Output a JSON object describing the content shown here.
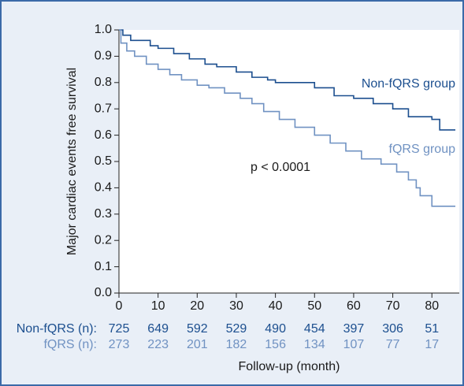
{
  "chart_data": {
    "type": "step",
    "ylabel": "Major cardiac events free survival",
    "xlabel": "Follow-up (month)",
    "annotation": "p < 0.0001",
    "xlim": [
      0,
      87
    ],
    "ylim": [
      0,
      1
    ],
    "xticks": [
      0,
      10,
      20,
      30,
      40,
      50,
      60,
      70,
      80
    ],
    "yticks": [
      {
        "value": 0,
        "label": "0.0"
      },
      0.1,
      0.2,
      0.3,
      0.4,
      0.5,
      0.6,
      0.7,
      0.8,
      0.9,
      {
        "value": 1,
        "label": "1.0"
      }
    ],
    "series": [
      {
        "name": "Non-fQRS group",
        "color": "#1c4f8f",
        "x": [
          0,
          1,
          3,
          8,
          10,
          14,
          18,
          22,
          25,
          30,
          34,
          38,
          40,
          45,
          50,
          55,
          60,
          65,
          70,
          74,
          80,
          82,
          86
        ],
        "values": [
          1.0,
          0.98,
          0.96,
          0.94,
          0.93,
          0.91,
          0.89,
          0.87,
          0.86,
          0.84,
          0.82,
          0.81,
          0.8,
          0.8,
          0.78,
          0.75,
          0.74,
          0.72,
          0.7,
          0.67,
          0.66,
          0.62,
          0.62
        ]
      },
      {
        "name": "fQRS group",
        "color": "#7092c2",
        "x": [
          0,
          0.5,
          2,
          4,
          7,
          10,
          13,
          16,
          20,
          23,
          27,
          31,
          34,
          37,
          41,
          45,
          50,
          54,
          58,
          62,
          67,
          71,
          74,
          76,
          77,
          80,
          86
        ],
        "values": [
          1.0,
          0.95,
          0.92,
          0.9,
          0.87,
          0.85,
          0.83,
          0.81,
          0.79,
          0.78,
          0.76,
          0.74,
          0.72,
          0.69,
          0.66,
          0.63,
          0.6,
          0.57,
          0.54,
          0.51,
          0.49,
          0.46,
          0.43,
          0.4,
          0.37,
          0.33,
          0.33
        ]
      }
    ],
    "risk_table": [
      {
        "label": "Non-fQRS (n):",
        "color": "#1c4f8f",
        "values": [
          725,
          649,
          592,
          529,
          490,
          454,
          397,
          306,
          51
        ]
      },
      {
        "label": "fQRS (n):",
        "color": "#7092c2",
        "values": [
          273,
          223,
          201,
          182,
          156,
          134,
          107,
          77,
          17
        ]
      }
    ]
  }
}
